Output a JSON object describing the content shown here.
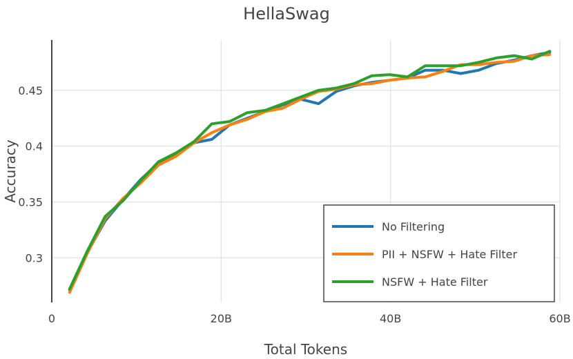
{
  "chart_data": {
    "type": "line",
    "title": "HellaSwag",
    "xlabel": "Total Tokens",
    "ylabel": "Accuracy",
    "xlim": [
      0,
      60
    ],
    "ylim": [
      0.26,
      0.495
    ],
    "x_ticks": [
      {
        "value": 0,
        "label": "0"
      },
      {
        "value": 20,
        "label": "20B"
      },
      {
        "value": 40,
        "label": "40B"
      },
      {
        "value": 60,
        "label": "60B"
      }
    ],
    "y_ticks": [
      {
        "value": 0.3,
        "label": "0.3"
      },
      {
        "value": 0.35,
        "label": "0.35"
      },
      {
        "value": 0.4,
        "label": "0.4"
      },
      {
        "value": 0.45,
        "label": "0.45"
      }
    ],
    "grid": true,
    "legend_position": "bottom-right",
    "x": [
      2.1,
      4.2,
      6.3,
      8.4,
      10.5,
      12.6,
      14.7,
      16.8,
      18.9,
      21.0,
      23.1,
      25.2,
      27.3,
      29.4,
      31.5,
      33.6,
      35.7,
      37.8,
      39.9,
      42.0,
      44.1,
      46.2,
      48.3,
      50.4,
      52.5,
      54.6,
      56.7,
      58.8
    ],
    "series": [
      {
        "name": "No Filtering",
        "color": "#1f77b4",
        "values": [
          0.271,
          0.305,
          0.333,
          0.352,
          0.37,
          0.385,
          0.393,
          0.403,
          0.406,
          0.419,
          0.425,
          0.431,
          0.437,
          0.442,
          0.438,
          0.449,
          0.454,
          0.457,
          0.459,
          0.461,
          0.468,
          0.468,
          0.465,
          0.468,
          0.474,
          0.477,
          0.481,
          0.484
        ]
      },
      {
        "name": "PII + NSFW + Hate Filter",
        "color": "#ff7f0e",
        "values": [
          0.269,
          0.304,
          0.335,
          0.353,
          0.367,
          0.383,
          0.391,
          0.403,
          0.412,
          0.419,
          0.424,
          0.431,
          0.434,
          0.442,
          0.449,
          0.451,
          0.455,
          0.456,
          0.459,
          0.461,
          0.462,
          0.467,
          0.473,
          0.473,
          0.475,
          0.476,
          0.481,
          0.482
        ]
      },
      {
        "name": "NSFW + Hate Filter",
        "color": "#2ca02c",
        "values": [
          0.272,
          0.306,
          0.337,
          0.351,
          0.369,
          0.386,
          0.394,
          0.404,
          0.42,
          0.422,
          0.43,
          0.432,
          0.438,
          0.444,
          0.45,
          0.452,
          0.456,
          0.463,
          0.464,
          0.462,
          0.472,
          0.472,
          0.472,
          0.475,
          0.479,
          0.481,
          0.478,
          0.485
        ]
      }
    ]
  }
}
